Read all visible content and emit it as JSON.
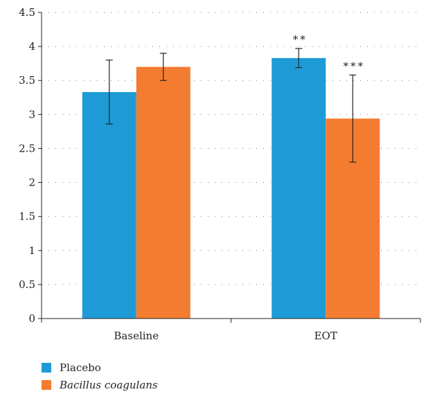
{
  "chart_data": {
    "type": "bar",
    "categories": [
      "Baseline",
      "EOT"
    ],
    "series": [
      {
        "name": "Placebo",
        "values": [
          3.33,
          3.83
        ],
        "error": [
          0.47,
          0.14
        ],
        "color": "#1e9bd7"
      },
      {
        "name": "Bacillus coagulans",
        "values": [
          3.7,
          2.94
        ],
        "error": [
          0.2,
          0.64
        ],
        "color": "#f47c30"
      }
    ],
    "significance": [
      {
        "category": "EOT",
        "series": "Placebo",
        "label": "**"
      },
      {
        "category": "EOT",
        "series": "Bacillus coagulans",
        "label": "***"
      }
    ],
    "ylim": [
      0,
      4.5
    ],
    "yticks": [
      "0",
      "0.5",
      "1",
      "1.5",
      "2",
      "2.5",
      "3",
      "3.5",
      "4",
      "4.5"
    ],
    "grid": "dotted-horizontal",
    "legend_position": "bottom-left",
    "title": "",
    "xlabel": "",
    "ylabel": ""
  },
  "legend": {
    "items": [
      {
        "label": "Placebo",
        "color": "#1e9bd7",
        "italic": false
      },
      {
        "label": "Bacillus coagulans",
        "color": "#f47c30",
        "italic": true
      }
    ]
  }
}
